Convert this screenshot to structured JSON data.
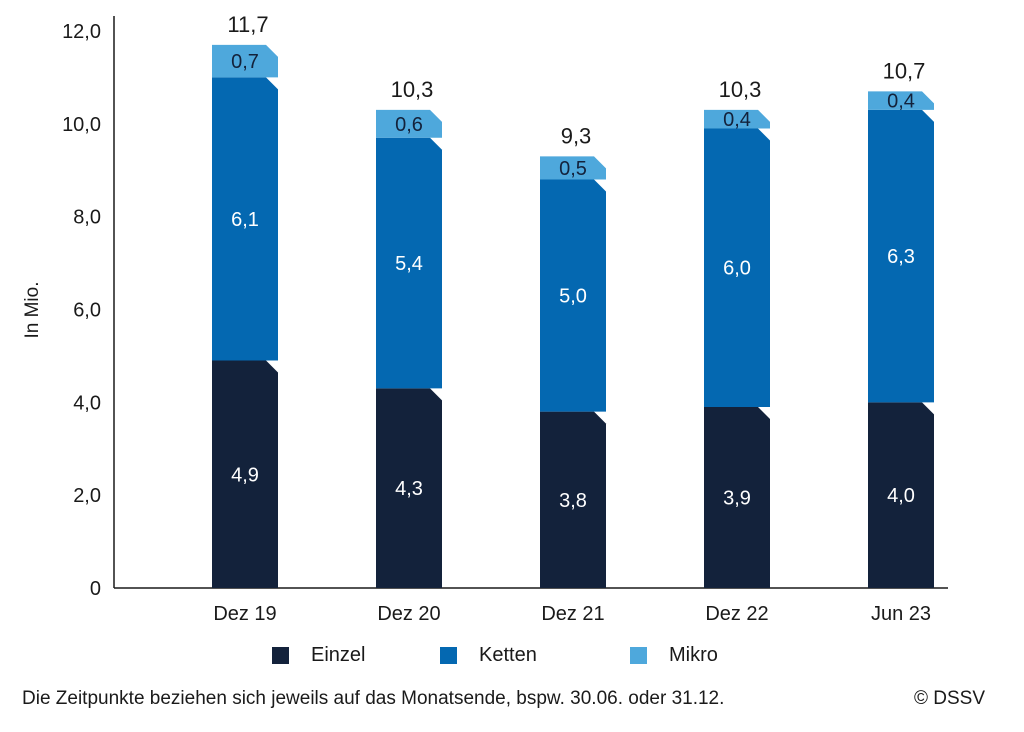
{
  "chart_data": {
    "type": "bar",
    "stacked": true,
    "categories": [
      "Dez 19",
      "Dez 20",
      "Dez 21",
      "Dez 22",
      "Jun 23"
    ],
    "series": [
      {
        "name": "Einzel",
        "values": [
          4.9,
          4.3,
          3.8,
          3.9,
          4.0
        ],
        "labels": [
          "4,9",
          "4,3",
          "3,8",
          "3,9",
          "4,0"
        ],
        "color": "#13223b",
        "label_color": "#ffffff"
      },
      {
        "name": "Ketten",
        "values": [
          6.1,
          5.4,
          5.0,
          6.0,
          6.3
        ],
        "labels": [
          "6,1",
          "5,4",
          "5,0",
          "6,0",
          "6,3"
        ],
        "color": "#0468b1",
        "label_color": "#ffffff"
      },
      {
        "name": "Mikro",
        "values": [
          0.7,
          0.6,
          0.5,
          0.4,
          0.4
        ],
        "labels": [
          "0,7",
          "0,6",
          "0,5",
          "0,4",
          "0,4"
        ],
        "color": "#4ea8dc",
        "label_color": "#13223b"
      }
    ],
    "totals": [
      11.7,
      10.3,
      9.3,
      10.3,
      10.7
    ],
    "total_labels": [
      "11,7",
      "10,3",
      "9,3",
      "10,3",
      "10,7"
    ],
    "ylabel": "In Mio.",
    "ylim": [
      0,
      12
    ],
    "yticks": [
      0,
      2,
      4,
      6,
      8,
      10,
      12
    ],
    "ytick_labels": [
      "0",
      "2,0",
      "4,0",
      "6,0",
      "8,0",
      "10,0",
      "12,0"
    ],
    "grid": false,
    "legend_position": "bottom"
  },
  "footnote": "Die Zeitpunkte beziehen sich jeweils auf das Monatsende, bspw. 30.06. oder 31.12.",
  "copyright": "© DSSV"
}
